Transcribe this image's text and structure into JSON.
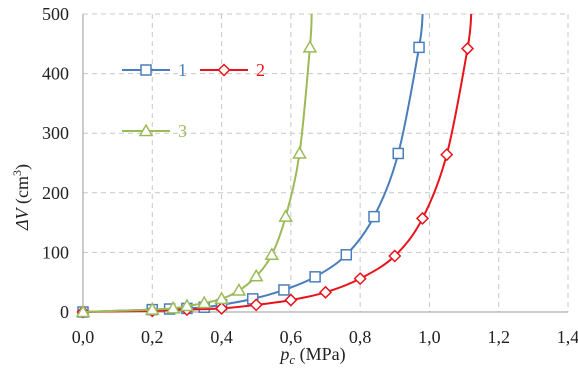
{
  "chart_data": {
    "type": "line",
    "xlabel": {
      "main": "p",
      "sub": "c",
      "unit": " (MPa)"
    },
    "ylabel": {
      "main": "ΔV",
      "unit": " (cm",
      "sup": "3",
      "close": ")"
    },
    "xlim": [
      0,
      1.4
    ],
    "ylim": [
      0,
      500
    ],
    "x_ticks": [
      {
        "value": 0.0,
        "label": "0,0"
      },
      {
        "value": 0.2,
        "label": "0,2"
      },
      {
        "value": 0.4,
        "label": "0,4"
      },
      {
        "value": 0.6,
        "label": "0,6"
      },
      {
        "value": 0.8,
        "label": "0,8"
      },
      {
        "value": 1.0,
        "label": "1,0"
      },
      {
        "value": 1.2,
        "label": "1,2"
      },
      {
        "value": 1.4,
        "label": "1,4"
      }
    ],
    "y_ticks": [
      {
        "value": 0,
        "label": "0"
      },
      {
        "value": 100,
        "label": "100"
      },
      {
        "value": 200,
        "label": "200"
      },
      {
        "value": 300,
        "label": "300"
      },
      {
        "value": 400,
        "label": "400"
      },
      {
        "value": 500,
        "label": "500"
      }
    ],
    "grid": "dashed",
    "legend_placement": "top-left, inside plot",
    "series": [
      {
        "name": "1",
        "color": "#4a7ebb",
        "marker": "square",
        "x": [
          0.0,
          0.2,
          0.25,
          0.3,
          0.35,
          0.4,
          0.49,
          0.58,
          0.67,
          0.76,
          0.84,
          0.91,
          0.97
        ],
        "y": [
          0,
          4,
          5,
          6,
          8,
          12,
          22,
          37,
          59,
          96,
          160,
          266,
          444
        ]
      },
      {
        "name": "2",
        "color": "#e8141b",
        "marker": "diamond",
        "x": [
          0.0,
          0.2,
          0.3,
          0.4,
          0.5,
          0.6,
          0.7,
          0.8,
          0.9,
          0.98,
          1.05,
          1.11
        ],
        "y": [
          0,
          2,
          4,
          6,
          12,
          20,
          33,
          56,
          94,
          157,
          264,
          442
        ]
      },
      {
        "name": "3",
        "color": "#9bbb59",
        "marker": "triangle",
        "x": [
          0.0,
          0.2,
          0.26,
          0.3,
          0.35,
          0.4,
          0.45,
          0.5,
          0.545,
          0.585,
          0.625,
          0.655
        ],
        "y": [
          0,
          4,
          6,
          10,
          15,
          22,
          36,
          60,
          96,
          160,
          266,
          444
        ]
      }
    ]
  }
}
